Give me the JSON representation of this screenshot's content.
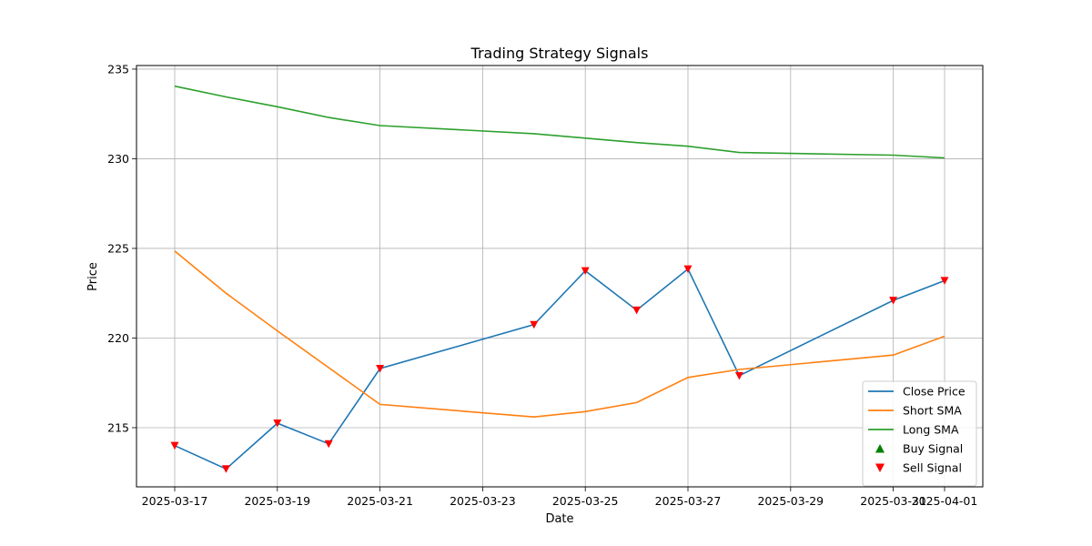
{
  "chart_data": {
    "type": "line",
    "title": "Trading Strategy Signals",
    "xlabel": "Date",
    "ylabel": "Price",
    "x_ticks": [
      "2025-03-17",
      "2025-03-19",
      "2025-03-21",
      "2025-03-23",
      "2025-03-25",
      "2025-03-27",
      "2025-03-29",
      "2025-03-31",
      "2025-04-01"
    ],
    "y_ticks": [
      215,
      220,
      225,
      230,
      235
    ],
    "xlim": [
      "2025-03-16",
      "2025-04-01"
    ],
    "ylim": [
      211.7,
      235.2
    ],
    "grid": true,
    "legend_position": "lower right",
    "series": [
      {
        "name": "Close Price",
        "color": "#1f77b4",
        "points": [
          {
            "x": "2025-03-17",
            "y": 214.0
          },
          {
            "x": "2025-03-18",
            "y": 212.7
          },
          {
            "x": "2025-03-19",
            "y": 215.25
          },
          {
            "x": "2025-03-20",
            "y": 214.1
          },
          {
            "x": "2025-03-21",
            "y": 218.3
          },
          {
            "x": "2025-03-24",
            "y": 220.75
          },
          {
            "x": "2025-03-25",
            "y": 223.75
          },
          {
            "x": "2025-03-26",
            "y": 221.55
          },
          {
            "x": "2025-03-27",
            "y": 223.85
          },
          {
            "x": "2025-03-28",
            "y": 217.9
          },
          {
            "x": "2025-03-31",
            "y": 222.1
          },
          {
            "x": "2025-04-01",
            "y": 223.2
          }
        ]
      },
      {
        "name": "Short SMA",
        "color": "#ff7f0e",
        "points": [
          {
            "x": "2025-03-17",
            "y": 224.85
          },
          {
            "x": "2025-03-18",
            "y": 222.5
          },
          {
            "x": "2025-03-19",
            "y": 220.4
          },
          {
            "x": "2025-03-20",
            "y": 218.35
          },
          {
            "x": "2025-03-21",
            "y": 216.3
          },
          {
            "x": "2025-03-24",
            "y": 215.6
          },
          {
            "x": "2025-03-25",
            "y": 215.9
          },
          {
            "x": "2025-03-26",
            "y": 216.4
          },
          {
            "x": "2025-03-27",
            "y": 217.8
          },
          {
            "x": "2025-03-28",
            "y": 218.25
          },
          {
            "x": "2025-03-31",
            "y": 219.05
          },
          {
            "x": "2025-04-01",
            "y": 220.1
          }
        ]
      },
      {
        "name": "Long SMA",
        "color": "#2ca02c",
        "points": [
          {
            "x": "2025-03-17",
            "y": 234.05
          },
          {
            "x": "2025-03-18",
            "y": 233.45
          },
          {
            "x": "2025-03-19",
            "y": 232.9
          },
          {
            "x": "2025-03-20",
            "y": 232.3
          },
          {
            "x": "2025-03-21",
            "y": 231.85
          },
          {
            "x": "2025-03-24",
            "y": 231.4
          },
          {
            "x": "2025-03-25",
            "y": 231.15
          },
          {
            "x": "2025-03-26",
            "y": 230.9
          },
          {
            "x": "2025-03-27",
            "y": 230.7
          },
          {
            "x": "2025-03-28",
            "y": 230.35
          },
          {
            "x": "2025-03-31",
            "y": 230.2
          },
          {
            "x": "2025-04-01",
            "y": 230.05
          }
        ]
      }
    ],
    "markers": [
      {
        "name": "Buy Signal",
        "color": "#008000",
        "shape": "triangle-up",
        "points": []
      },
      {
        "name": "Sell Signal",
        "color": "#ff0000",
        "shape": "triangle-down",
        "points": [
          {
            "x": "2025-03-17",
            "y": 214.0
          },
          {
            "x": "2025-03-18",
            "y": 212.7
          },
          {
            "x": "2025-03-19",
            "y": 215.25
          },
          {
            "x": "2025-03-20",
            "y": 214.1
          },
          {
            "x": "2025-03-21",
            "y": 218.3
          },
          {
            "x": "2025-03-24",
            "y": 220.75
          },
          {
            "x": "2025-03-25",
            "y": 223.75
          },
          {
            "x": "2025-03-26",
            "y": 221.55
          },
          {
            "x": "2025-03-27",
            "y": 223.85
          },
          {
            "x": "2025-03-28",
            "y": 217.9
          },
          {
            "x": "2025-03-31",
            "y": 222.1
          },
          {
            "x": "2025-04-01",
            "y": 223.2
          }
        ]
      }
    ]
  }
}
